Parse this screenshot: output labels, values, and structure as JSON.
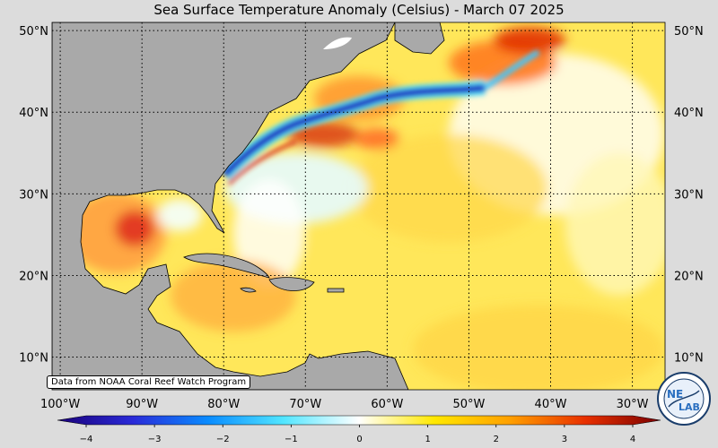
{
  "title": "Sea Surface Temperature Anomaly (Celsius) - March 07 2025",
  "credit": "Data from NOAA Coral Reef Watch Program",
  "logo": {
    "text_top": "NE",
    "text_bottom": "LAB",
    "icon": "nexlab-logo-icon"
  },
  "map": {
    "lat_range": [
      6,
      51
    ],
    "lon_range": [
      -101,
      -26
    ],
    "lat_ticks": [
      {
        "value": 50,
        "label": "50°N"
      },
      {
        "value": 40,
        "label": "40°N"
      },
      {
        "value": 30,
        "label": "30°N"
      },
      {
        "value": 20,
        "label": "20°N"
      },
      {
        "value": 10,
        "label": "10°N"
      }
    ],
    "lon_ticks": [
      {
        "value": -100,
        "label": "100°W"
      },
      {
        "value": -90,
        "label": "90°W"
      },
      {
        "value": -80,
        "label": "80°W"
      },
      {
        "value": -70,
        "label": "70°W"
      },
      {
        "value": -60,
        "label": "60°W"
      },
      {
        "value": -50,
        "label": "50°W"
      },
      {
        "value": -40,
        "label": "40°W"
      },
      {
        "value": -30,
        "label": "30°W"
      }
    ],
    "grid": "dotted",
    "land_color": "#a9a9a9",
    "ocean_base_color": "#ffe75a"
  },
  "colorbar": {
    "min": -4,
    "max": 4,
    "ticks": [
      {
        "value": -4,
        "label": "−4"
      },
      {
        "value": -3,
        "label": "−3"
      },
      {
        "value": -2,
        "label": "−2"
      },
      {
        "value": -1,
        "label": "−1"
      },
      {
        "value": 0,
        "label": "0"
      },
      {
        "value": 1,
        "label": "1"
      },
      {
        "value": 2,
        "label": "2"
      },
      {
        "value": 3,
        "label": "3"
      },
      {
        "value": 4,
        "label": "4"
      }
    ],
    "colors": [
      "#1a0078",
      "#2a2ad8",
      "#0a8cff",
      "#52e6ff",
      "#ffffff",
      "#ffe800",
      "#ffa000",
      "#e83000",
      "#7a0000"
    ]
  }
}
